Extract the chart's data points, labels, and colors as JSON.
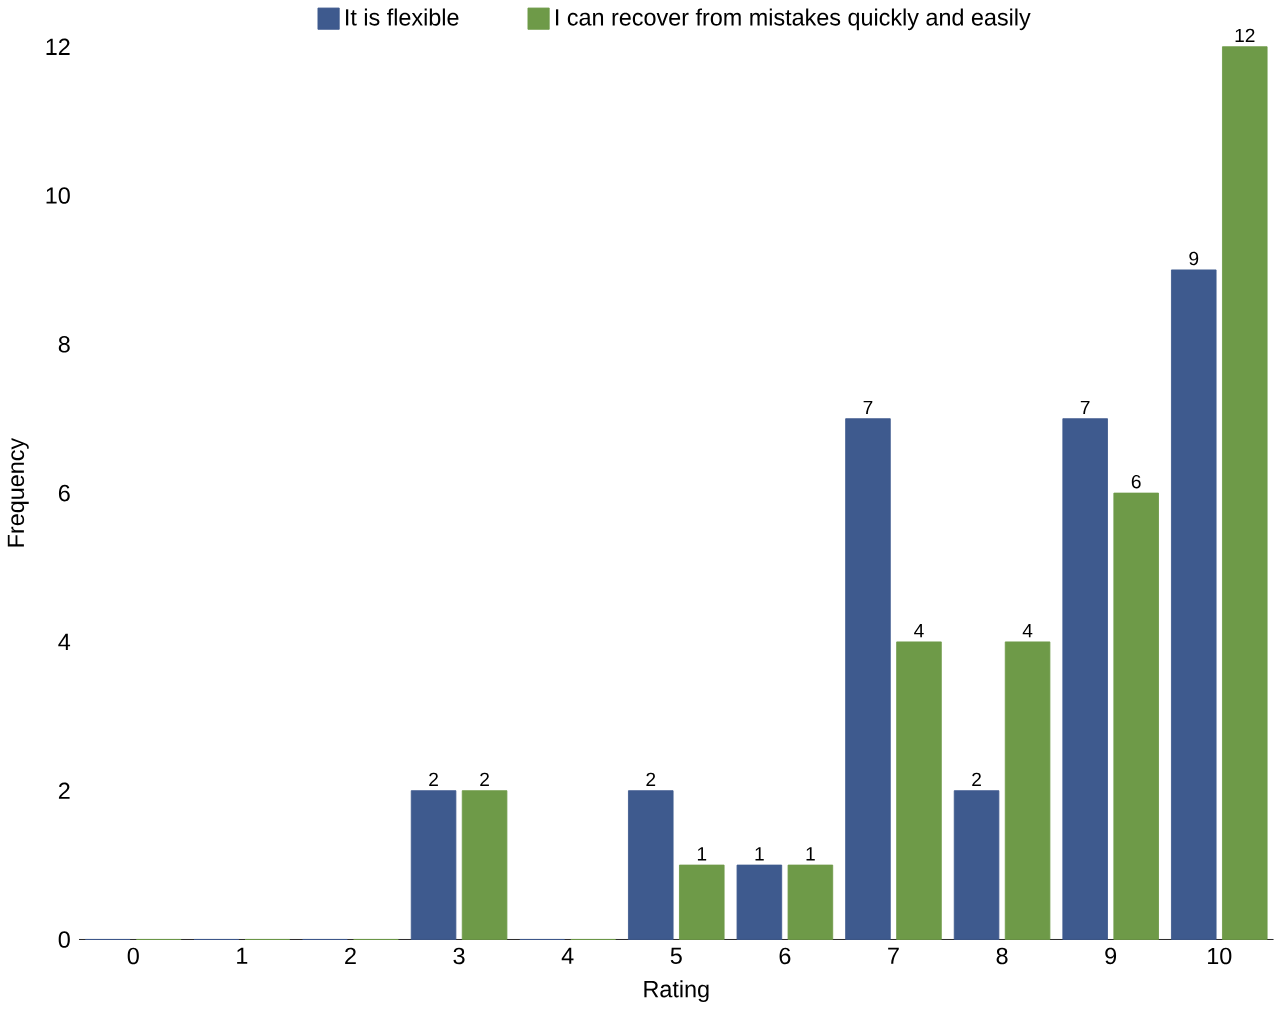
{
  "chart_data": {
    "type": "bar",
    "xlabel": "Rating",
    "ylabel": "Frequency",
    "categories": [
      "0",
      "1",
      "2",
      "3",
      "4",
      "5",
      "6",
      "7",
      "8",
      "9",
      "10"
    ],
    "series": [
      {
        "name": "It is flexible",
        "color": "#3e5a8e",
        "values": [
          0,
          0,
          0,
          2,
          0,
          2,
          1,
          7,
          2,
          7,
          9
        ],
        "value_labels": [
          null,
          null,
          null,
          "2",
          null,
          "2",
          "1",
          "7",
          "2",
          "7",
          "9"
        ]
      },
      {
        "name": "I can recover from mistakes quickly and easily",
        "color": "#6e9a48",
        "values": [
          0,
          0,
          0,
          2,
          0,
          1,
          1,
          4,
          4,
          6,
          12
        ],
        "value_labels": [
          null,
          null,
          null,
          "2",
          null,
          "1",
          "1",
          "4",
          "4",
          "6",
          "12"
        ]
      }
    ],
    "ylim": [
      0,
      12
    ],
    "yticks": [
      0,
      2,
      4,
      6,
      8,
      10,
      12
    ],
    "grid": false,
    "legend": "top"
  }
}
